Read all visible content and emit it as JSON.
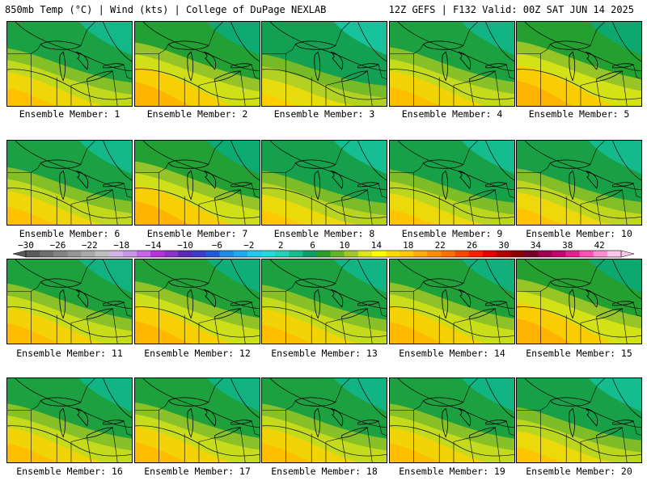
{
  "header": {
    "left": "850mb Temp (°C) | Wind (kts) | College of DuPage NEXLAB",
    "right": "12Z GEFS | F132 Valid: 00Z SAT JUN 14 2025"
  },
  "members": [
    {
      "label": "Ensemble Member: 1",
      "warmth": 0.55
    },
    {
      "label": "Ensemble Member: 2",
      "warmth": 0.8
    },
    {
      "label": "Ensemble Member: 3",
      "warmth": 0.3
    },
    {
      "label": "Ensemble Member: 4",
      "warmth": 0.6
    },
    {
      "label": "Ensemble Member: 5",
      "warmth": 0.85
    },
    {
      "label": "Ensemble Member: 6",
      "warmth": 0.55
    },
    {
      "label": "Ensemble Member: 7",
      "warmth": 0.8
    },
    {
      "label": "Ensemble Member: 8",
      "warmth": 0.4
    },
    {
      "label": "Ensemble Member: 9",
      "warmth": 0.45
    },
    {
      "label": "Ensemble Member: 10",
      "warmth": 0.5
    },
    {
      "label": "Ensemble Member: 11",
      "warmth": 0.65
    },
    {
      "label": "Ensemble Member: 12",
      "warmth": 0.75
    },
    {
      "label": "Ensemble Member: 13",
      "warmth": 0.6
    },
    {
      "label": "Ensemble Member: 14",
      "warmth": 0.7
    },
    {
      "label": "Ensemble Member: 15",
      "warmth": 0.85
    },
    {
      "label": "Ensemble Member: 16",
      "warmth": 0.6
    },
    {
      "label": "Ensemble Member: 17",
      "warmth": 0.65
    },
    {
      "label": "Ensemble Member: 18",
      "warmth": 0.6
    },
    {
      "label": "Ensemble Member: 19",
      "warmth": 0.6
    },
    {
      "label": "Ensemble Member: 20",
      "warmth": 0.45
    }
  ],
  "colorbar": {
    "tick_labels": [
      "-30",
      "-26",
      "-22",
      "-18",
      "-14",
      "-10",
      "-6",
      "-2",
      "2",
      "6",
      "10",
      "14",
      "18",
      "22",
      "26",
      "30",
      "34",
      "38",
      "42"
    ],
    "colors": [
      "#5a5a5a",
      "#6e6e6e",
      "#828282",
      "#969696",
      "#aaaaaa",
      "#bebebe",
      "#d2b4e6",
      "#c896e6",
      "#c864e6",
      "#b432dc",
      "#8c32c8",
      "#5a28b4",
      "#3c3cc8",
      "#1e5adc",
      "#1e8ce6",
      "#1eaaf0",
      "#1ec8f0",
      "#1edcdc",
      "#1ed2b4",
      "#14be8c",
      "#0aa064",
      "#28a028",
      "#64b428",
      "#a0c828",
      "#dce614",
      "#ffff00",
      "#ffdc00",
      "#ffc800",
      "#ffaa00",
      "#ff8c00",
      "#ff6e00",
      "#ff4600",
      "#ff1e00",
      "#e60000",
      "#b40000",
      "#8c0000",
      "#780028",
      "#a00050",
      "#c8006e",
      "#e61e8c",
      "#ff50b4",
      "#ff8cd2",
      "#ffc8eb"
    ]
  }
}
